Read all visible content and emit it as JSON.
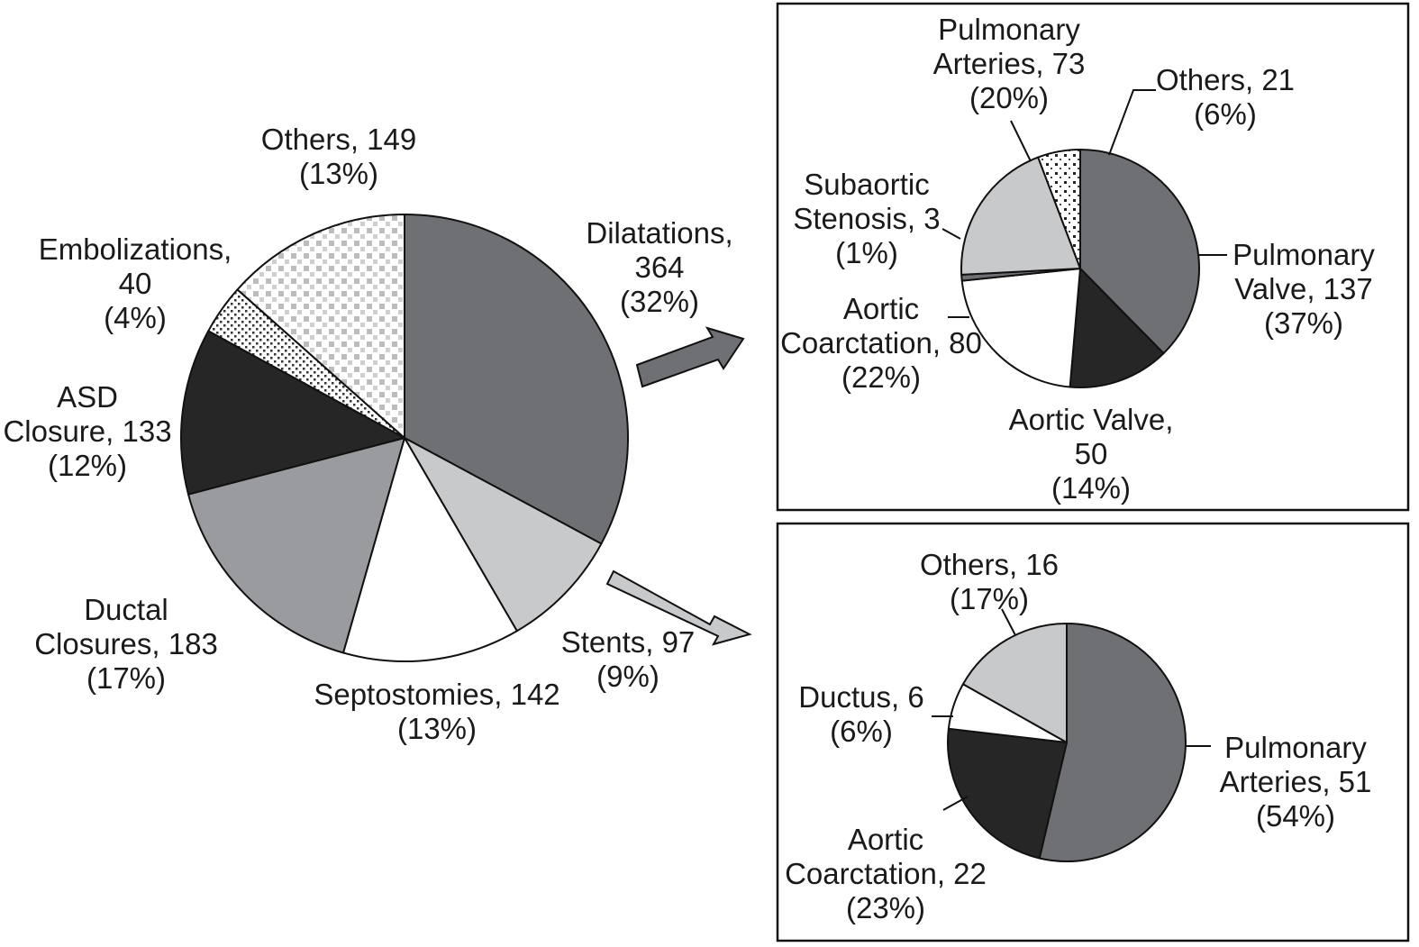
{
  "chart_data": [
    {
      "type": "pie",
      "slices": [
        {
          "label": "Dilatations",
          "value": 364,
          "percent": 32,
          "lines": [
            "Dilatations,",
            "364",
            "(32%)"
          ],
          "color": "#6f7074"
        },
        {
          "label": "Stents",
          "value": 97,
          "percent": 9,
          "lines": [
            "Stents, 97",
            "(9%)"
          ],
          "color": "#c8c9cb"
        },
        {
          "label": "Septostomies",
          "value": 142,
          "percent": 13,
          "lines": [
            "Septostomies, 142",
            "(13%)"
          ],
          "color": "#ffffff"
        },
        {
          "label": "Ductal Closures",
          "value": 183,
          "percent": 17,
          "lines": [
            "Ductal",
            "Closures, 183",
            "(17%)"
          ],
          "color": "#9a9b9e"
        },
        {
          "label": "ASD Closure",
          "value": 133,
          "percent": 12,
          "lines": [
            "ASD",
            "Closure, 133",
            "(12%)"
          ],
          "color": "#262626"
        },
        {
          "label": "Embolizations",
          "value": 40,
          "percent": 4,
          "lines": [
            "Embolizations,",
            "40",
            "(4%)"
          ],
          "color": "pattern-diagonal-dots"
        },
        {
          "label": "Others",
          "value": 149,
          "percent": 13,
          "lines": [
            "Others, 149",
            "(13%)"
          ],
          "color": "pattern-light-squares"
        }
      ]
    },
    {
      "type": "pie",
      "slices": [
        {
          "label": "Pulmonary Valve",
          "value": 137,
          "percent": 37,
          "lines": [
            "Pulmonary",
            "Valve, 137",
            "(37%)"
          ],
          "color": "#6f7074"
        },
        {
          "label": "Aortic Valve",
          "value": 50,
          "percent": 14,
          "lines": [
            "Aortic Valve,",
            "50",
            "(14%)"
          ],
          "color": "#262626"
        },
        {
          "label": "Aortic Coarctation",
          "value": 80,
          "percent": 22,
          "lines": [
            "Aortic",
            "Coarctation, 80",
            "(22%)"
          ],
          "color": "#ffffff"
        },
        {
          "label": "Subaortic Stenosis",
          "value": 3,
          "percent": 1,
          "lines": [
            "Subaortic",
            "Stenosis, 3",
            "(1%)"
          ],
          "color": "#6f7074"
        },
        {
          "label": "Pulmonary Arteries",
          "value": 73,
          "percent": 20,
          "lines": [
            "Pulmonary",
            "Arteries, 73",
            "(20%)"
          ],
          "color": "#c8c9cb"
        },
        {
          "label": "Others",
          "value": 21,
          "percent": 6,
          "lines": [
            "Others, 21",
            "(6%)"
          ],
          "color": "pattern-dark-dots"
        }
      ]
    },
    {
      "type": "pie",
      "slices": [
        {
          "label": "Pulmonary Arteries",
          "value": 51,
          "percent": 54,
          "lines": [
            "Pulmonary",
            "Arteries, 51",
            "(54%)"
          ],
          "color": "#6f7074"
        },
        {
          "label": "Aortic Coarctation",
          "value": 22,
          "percent": 23,
          "lines": [
            "Aortic",
            "Coarctation, 22",
            "(23%)"
          ],
          "color": "#262626"
        },
        {
          "label": "Ductus",
          "value": 6,
          "percent": 6,
          "lines": [
            "Ductus, 6",
            "(6%)"
          ],
          "color": "#ffffff"
        },
        {
          "label": "Others",
          "value": 16,
          "percent": 17,
          "lines": [
            "Others, 16",
            "(17%)"
          ],
          "color": "#c8c9cb"
        }
      ]
    }
  ],
  "colors": {
    "dilatations_arrow": "#6f7074",
    "stents_arrow": "#c8c9cb",
    "outline": "#111111"
  }
}
